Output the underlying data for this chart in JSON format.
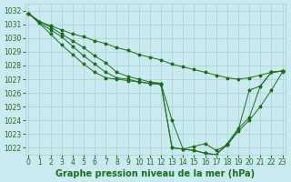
{
  "bg_color": "#c8eaf0",
  "grid_color": "#a8d0d0",
  "line_color": "#1a6e1a",
  "xlabel": "Graphe pression niveau de la mer (hPa)",
  "xlabel_fontsize": 7,
  "tick_fontsize": 5.5,
  "ylim": [
    1021.5,
    1032.5
  ],
  "xlim": [
    -0.3,
    23.3
  ],
  "yticks": [
    1022,
    1023,
    1024,
    1025,
    1026,
    1027,
    1028,
    1029,
    1030,
    1031,
    1032
  ],
  "xticks": [
    0,
    1,
    2,
    3,
    4,
    5,
    6,
    7,
    8,
    9,
    10,
    11,
    12,
    13,
    14,
    15,
    16,
    17,
    18,
    19,
    20,
    21,
    22,
    23
  ],
  "lines": [
    {
      "x": [
        0,
        1,
        2,
        3,
        4,
        5,
        6,
        7,
        8,
        9,
        10,
        11,
        12,
        13,
        14,
        15,
        16,
        17,
        18,
        19,
        20,
        21,
        22,
        23
      ],
      "y": [
        1031.8,
        1031.2,
        1030.9,
        1030.6,
        1030.3,
        1030.1,
        1029.8,
        1029.6,
        1029.3,
        1029.1,
        1028.8,
        1028.6,
        1028.4,
        1028.1,
        1027.9,
        1027.7,
        1027.5,
        1027.3,
        1027.1,
        1027.0,
        1027.1,
        1027.3,
        1027.5,
        1027.6
      ]
    },
    {
      "x": [
        0,
        1,
        2,
        3,
        4,
        5,
        6,
        7,
        8,
        9,
        10,
        11,
        12,
        13,
        14,
        15,
        16,
        17,
        18,
        19,
        20,
        21,
        22,
        23
      ],
      "y": [
        1031.8,
        1031.2,
        1030.8,
        1030.3,
        1029.8,
        1029.3,
        1028.7,
        1028.2,
        1027.5,
        1027.2,
        1027.0,
        1026.8,
        1026.7,
        1024.0,
        1021.9,
        1022.1,
        1022.3,
        1021.8,
        1022.2,
        1023.2,
        1024.0,
        1025.0,
        1026.2,
        1027.5
      ]
    },
    {
      "x": [
        0,
        1,
        2,
        3,
        4,
        5,
        6,
        7,
        8,
        9,
        10,
        11,
        12,
        13,
        14,
        15,
        16,
        17,
        18,
        19,
        20,
        21,
        22,
        23
      ],
      "y": [
        1031.8,
        1031.1,
        1030.6,
        1030.1,
        1029.4,
        1028.7,
        1028.1,
        1027.5,
        1027.1,
        1027.0,
        1026.8,
        1026.7,
        1026.6,
        1022.0,
        1021.9,
        1021.8,
        1021.6,
        1021.5,
        1022.2,
        1023.3,
        1026.2,
        1026.5,
        1027.5,
        1027.6
      ]
    },
    {
      "x": [
        0,
        2,
        3,
        4,
        5,
        6,
        7,
        8,
        9,
        10,
        11,
        12,
        13,
        14,
        15,
        16,
        17,
        18,
        19,
        20,
        21,
        22,
        23
      ],
      "y": [
        1031.8,
        1030.3,
        1029.5,
        1028.8,
        1028.1,
        1027.5,
        1027.1,
        1027.0,
        1026.9,
        1026.8,
        1026.7,
        1026.7,
        1022.0,
        1021.9,
        1021.8,
        1021.6,
        1021.5,
        1022.3,
        1023.4,
        1024.2,
        1026.5,
        1027.5,
        1027.6
      ]
    }
  ]
}
